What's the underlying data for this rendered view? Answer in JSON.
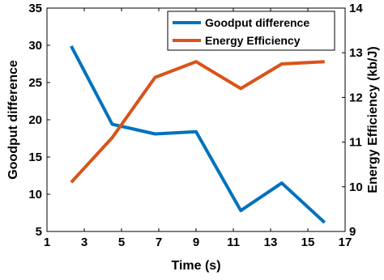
{
  "chart_data": {
    "type": "line",
    "xlabel": "Time (s)",
    "ylabel_left": "Goodput difference",
    "ylabel_right": "Energy Efficiency (kb/J)",
    "xlim": [
      1,
      17
    ],
    "ylim_left": [
      5,
      35
    ],
    "ylim_right": [
      9,
      14
    ],
    "x_ticks": [
      1,
      3,
      5,
      7,
      9,
      11,
      13,
      15,
      17
    ],
    "y_left_ticks": [
      5,
      10,
      15,
      20,
      25,
      30,
      35
    ],
    "y_right_ticks": [
      9,
      10,
      11,
      12,
      13,
      14
    ],
    "grid": false,
    "legend_position": "top-right",
    "series": [
      {
        "name": "Goodput difference",
        "axis": "left",
        "color": "#0072BD",
        "x": [
          2.3,
          4.5,
          6.8,
          9.0,
          11.4,
          13.6,
          15.9
        ],
        "y": [
          29.9,
          19.4,
          18.1,
          18.4,
          7.8,
          11.5,
          6.2
        ]
      },
      {
        "name": "Energy Efficiency",
        "axis": "right",
        "color": "#D95319",
        "x": [
          2.3,
          4.5,
          6.8,
          9.0,
          11.4,
          13.6,
          15.9
        ],
        "y": [
          10.1,
          11.1,
          12.45,
          12.8,
          12.2,
          12.75,
          12.8
        ]
      }
    ]
  }
}
